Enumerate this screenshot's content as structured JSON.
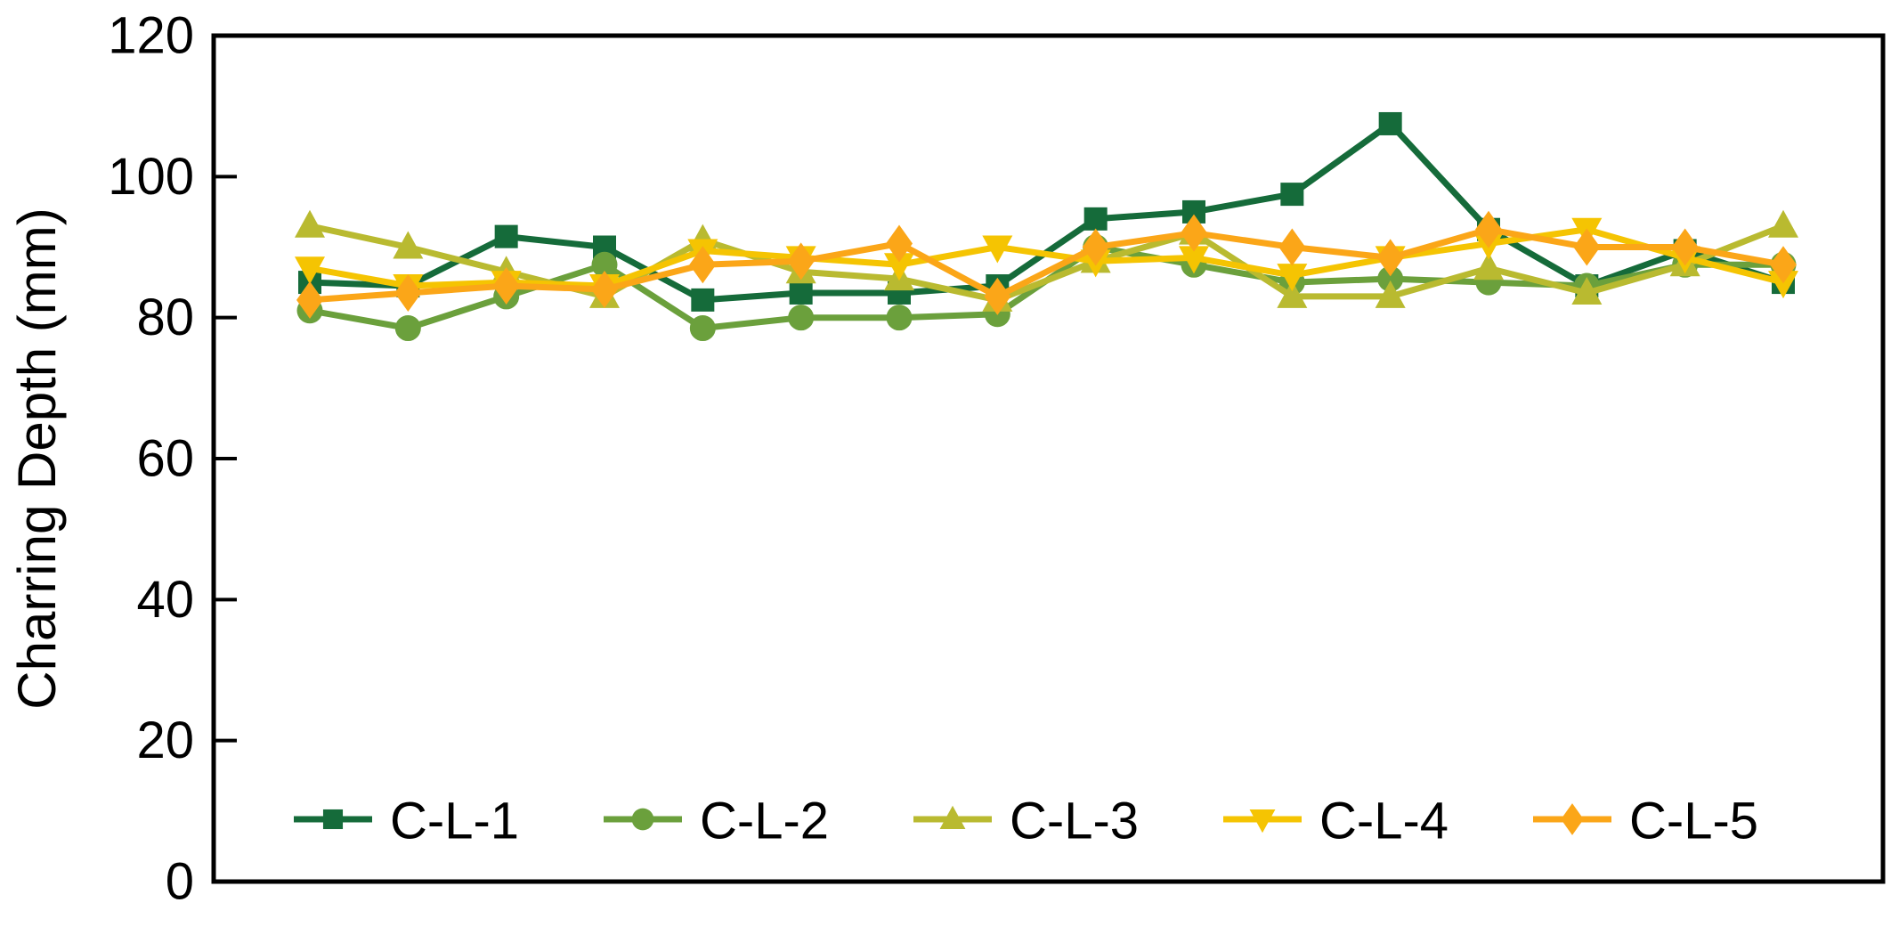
{
  "figure": {
    "background": "#ffffff",
    "frame_color": "#000000",
    "text_color": "#000000"
  },
  "chart_data": {
    "type": "line",
    "title": "",
    "xlabel": "",
    "ylabel": "Charring Depth (mm)",
    "ylim": [
      0,
      120
    ],
    "yticks": [
      0,
      20,
      40,
      60,
      80,
      100,
      120
    ],
    "grid": false,
    "legend_position": "bottom-inside",
    "x": [
      1,
      2,
      3,
      4,
      5,
      6,
      7,
      8,
      9,
      10,
      11,
      12,
      13,
      14,
      15,
      16
    ],
    "series": [
      {
        "name": "C-L-1",
        "color": "#156b3a",
        "marker": "square",
        "values": [
          85,
          84.5,
          91.5,
          90,
          82.5,
          83.5,
          83.5,
          84.5,
          94,
          95,
          97.5,
          107.5,
          92.5,
          84.5,
          89.5,
          85
        ]
      },
      {
        "name": "C-L-2",
        "color": "#6ba03c",
        "marker": "circle",
        "values": [
          81,
          78.5,
          83,
          87.5,
          78.5,
          80,
          80,
          80.5,
          90,
          87.5,
          85,
          85.5,
          85,
          84.5,
          87.5,
          87.5
        ]
      },
      {
        "name": "C-L-3",
        "color": "#b9ba30",
        "marker": "triangle-up",
        "values": [
          93,
          90,
          86.5,
          83,
          91,
          86.5,
          85.5,
          82.5,
          88,
          92,
          83,
          83,
          87,
          83.5,
          87.5,
          93
        ]
      },
      {
        "name": "C-L-4",
        "color": "#f5c402",
        "marker": "triangle-down",
        "values": [
          87,
          84.5,
          85,
          84.5,
          89.5,
          88.5,
          87.5,
          90,
          88,
          88.5,
          86,
          88.5,
          90.5,
          92.5,
          88.5,
          85
        ]
      },
      {
        "name": "C-L-5",
        "color": "#fba618",
        "marker": "diamond",
        "values": [
          82.5,
          83.5,
          84.5,
          84,
          87.5,
          88,
          90.5,
          83,
          90,
          92,
          90,
          88.5,
          92.5,
          90,
          90,
          87.5
        ]
      }
    ]
  }
}
